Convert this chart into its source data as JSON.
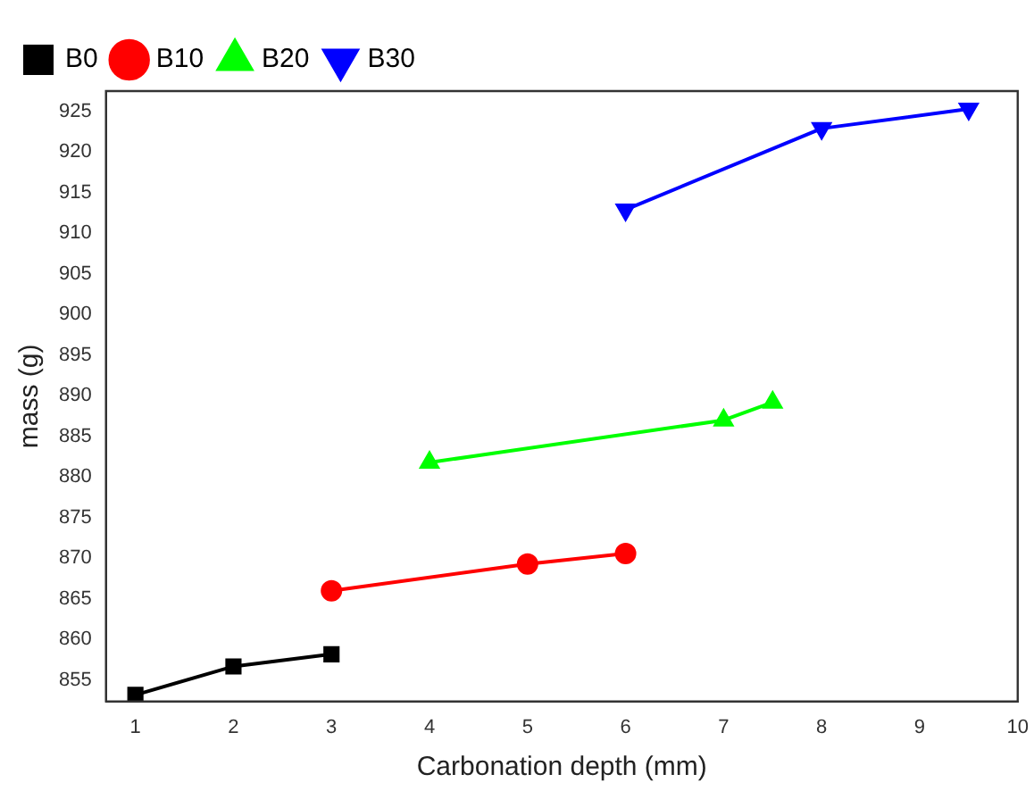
{
  "chart_data": {
    "type": "line",
    "xlabel": "Carbonation depth (mm)",
    "ylabel": "mass (g)",
    "xlim": [
      0.7,
      10
    ],
    "xticks": [
      1,
      2,
      3,
      4,
      5,
      6,
      7,
      8,
      9,
      10
    ],
    "ylim": [
      852.4,
      927.5
    ],
    "yticks": [
      855,
      860,
      865,
      870,
      875,
      880,
      885,
      890,
      895,
      900,
      905,
      910,
      915,
      920,
      925
    ],
    "grid": false,
    "legend": "top left",
    "series": [
      {
        "name": "B0",
        "color": "#000000",
        "marker": "square",
        "x": [
          1,
          2,
          3
        ],
        "values": [
          853.2,
          856.7,
          858.2
        ]
      },
      {
        "name": "B10",
        "color": "#ff0000",
        "marker": "circle",
        "x": [
          3,
          5,
          6
        ],
        "values": [
          866.0,
          869.3,
          870.6
        ]
      },
      {
        "name": "B20",
        "color": "#00ff00",
        "marker": "triangle",
        "x": [
          4,
          7,
          7.5
        ],
        "values": [
          881.8,
          887.0,
          889.2
        ]
      },
      {
        "name": "B30",
        "color": "#0000ff",
        "marker": "triangle-down",
        "x": [
          6,
          8,
          9.5
        ],
        "values": [
          912.9,
          922.9,
          925.3
        ]
      }
    ]
  }
}
